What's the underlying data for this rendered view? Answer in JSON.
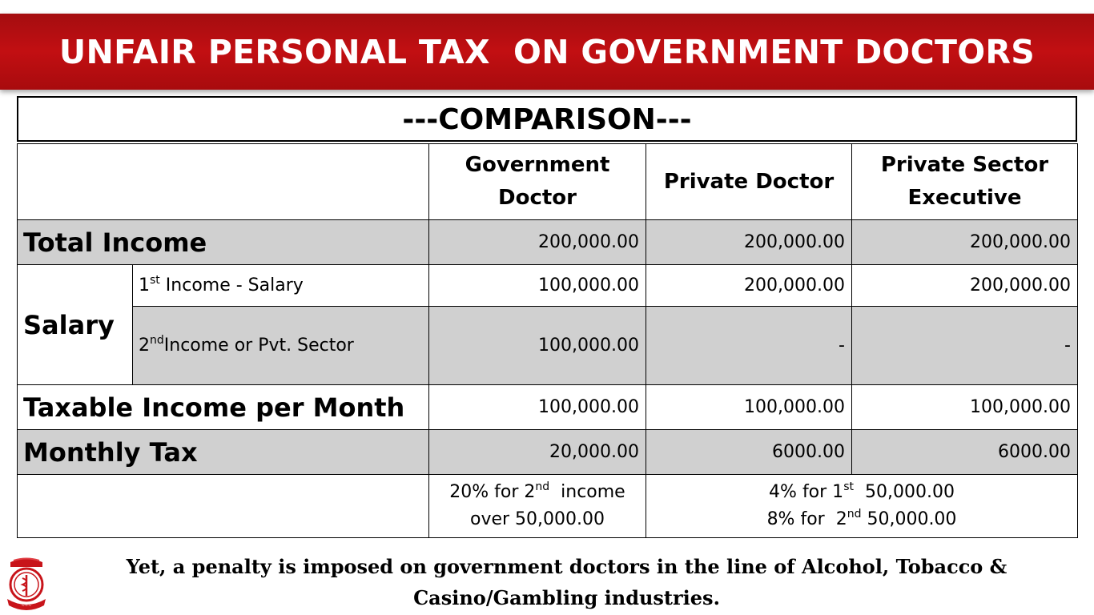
{
  "banner": {
    "title": "UNFAIR PERSONAL TAX  ON GOVERNMENT DOCTORS"
  },
  "comparison_title": "---COMPARISON---",
  "table": {
    "columns": {
      "gov": [
        "Government",
        "Doctor"
      ],
      "pvt_doctor": "Private Doctor",
      "pvt_exec": [
        "Private Sector",
        "Executive"
      ]
    },
    "total_income": {
      "label": "Total Income",
      "values": [
        "200,000.00",
        "200,000.00",
        "200,000.00"
      ]
    },
    "salary": {
      "label": "Salary",
      "first": {
        "ordinal": "1",
        "sup": "st",
        "text": " Income - Salary",
        "values": [
          "100,000.00",
          "200,000.00",
          "200,000.00"
        ]
      },
      "second": {
        "ordinal": "2",
        "sup": "nd",
        "text": "Income or Pvt. Sector",
        "values": [
          "100,000.00",
          "-",
          "-"
        ]
      }
    },
    "taxable_income": {
      "label": "Taxable Income per Month",
      "values": [
        "100,000.00",
        "100,000.00",
        "100,000.00"
      ]
    },
    "monthly_tax": {
      "label": "Monthly Tax",
      "values": [
        "20,000.00",
        "6000.00",
        "6000.00"
      ]
    },
    "notes": {
      "gov": {
        "line1_pre": "20% for 2",
        "line1_sup": "nd",
        "line1_post": "  income",
        "line2": "over 50,000.00"
      },
      "private": {
        "line1_pre": "4% for 1",
        "line1_sup": "st",
        "line1_post": "  50,000.00",
        "line2_pre": "8% for  2",
        "line2_sup": "nd",
        "line2_post": " 50,000.00"
      }
    }
  },
  "footer": {
    "line1": "Yet, a penalty is imposed on government doctors in the line of Alcohol, Tobacco &",
    "line2": "Casino/Gambling industries."
  },
  "colors": {
    "banner": "#b20e11",
    "row_shade": "#d0d0d0"
  }
}
